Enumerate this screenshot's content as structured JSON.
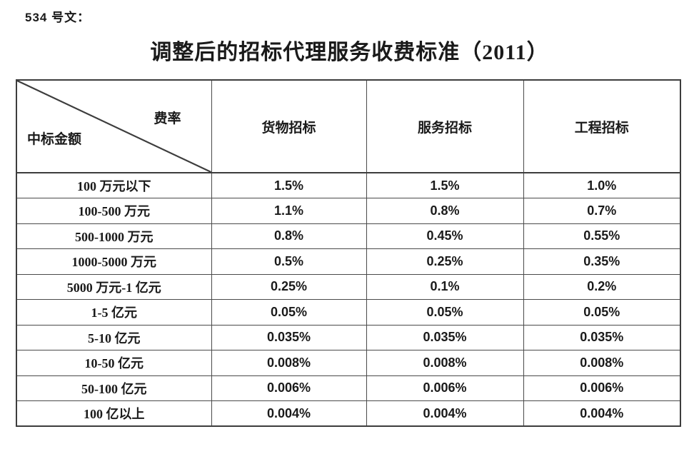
{
  "page": {
    "doc_label": "534 号文：",
    "title": "调整后的招标代理服务收费标准（2011）"
  },
  "colors": {
    "text": "#1a1a1a",
    "table_border": "#3d3d3d",
    "background": "#ffffff"
  },
  "table": {
    "corner": {
      "top_right_label": "费率",
      "bottom_left_label": "中标金额"
    },
    "columns": [
      "货物招标",
      "服务招标",
      "工程招标"
    ],
    "rows": [
      {
        "amount": "100 万元以下",
        "values": [
          "1.5%",
          "1.5%",
          "1.0%"
        ]
      },
      {
        "amount": "100-500 万元",
        "values": [
          "1.1%",
          "0.8%",
          "0.7%"
        ]
      },
      {
        "amount": "500-1000 万元",
        "values": [
          "0.8%",
          "0.45%",
          "0.55%"
        ]
      },
      {
        "amount": "1000-5000 万元",
        "values": [
          "0.5%",
          "0.25%",
          "0.35%"
        ]
      },
      {
        "amount": "5000 万元-1 亿元",
        "values": [
          "0.25%",
          "0.1%",
          "0.2%"
        ]
      },
      {
        "amount": "1-5 亿元",
        "values": [
          "0.05%",
          "0.05%",
          "0.05%"
        ]
      },
      {
        "amount": "5-10 亿元",
        "values": [
          "0.035%",
          "0.035%",
          "0.035%"
        ]
      },
      {
        "amount": "10-50 亿元",
        "values": [
          "0.008%",
          "0.008%",
          "0.008%"
        ]
      },
      {
        "amount": "50-100 亿元",
        "values": [
          "0.006%",
          "0.006%",
          "0.006%"
        ]
      },
      {
        "amount": "100 亿以上",
        "values": [
          "0.004%",
          "0.004%",
          "0.004%"
        ]
      }
    ]
  }
}
